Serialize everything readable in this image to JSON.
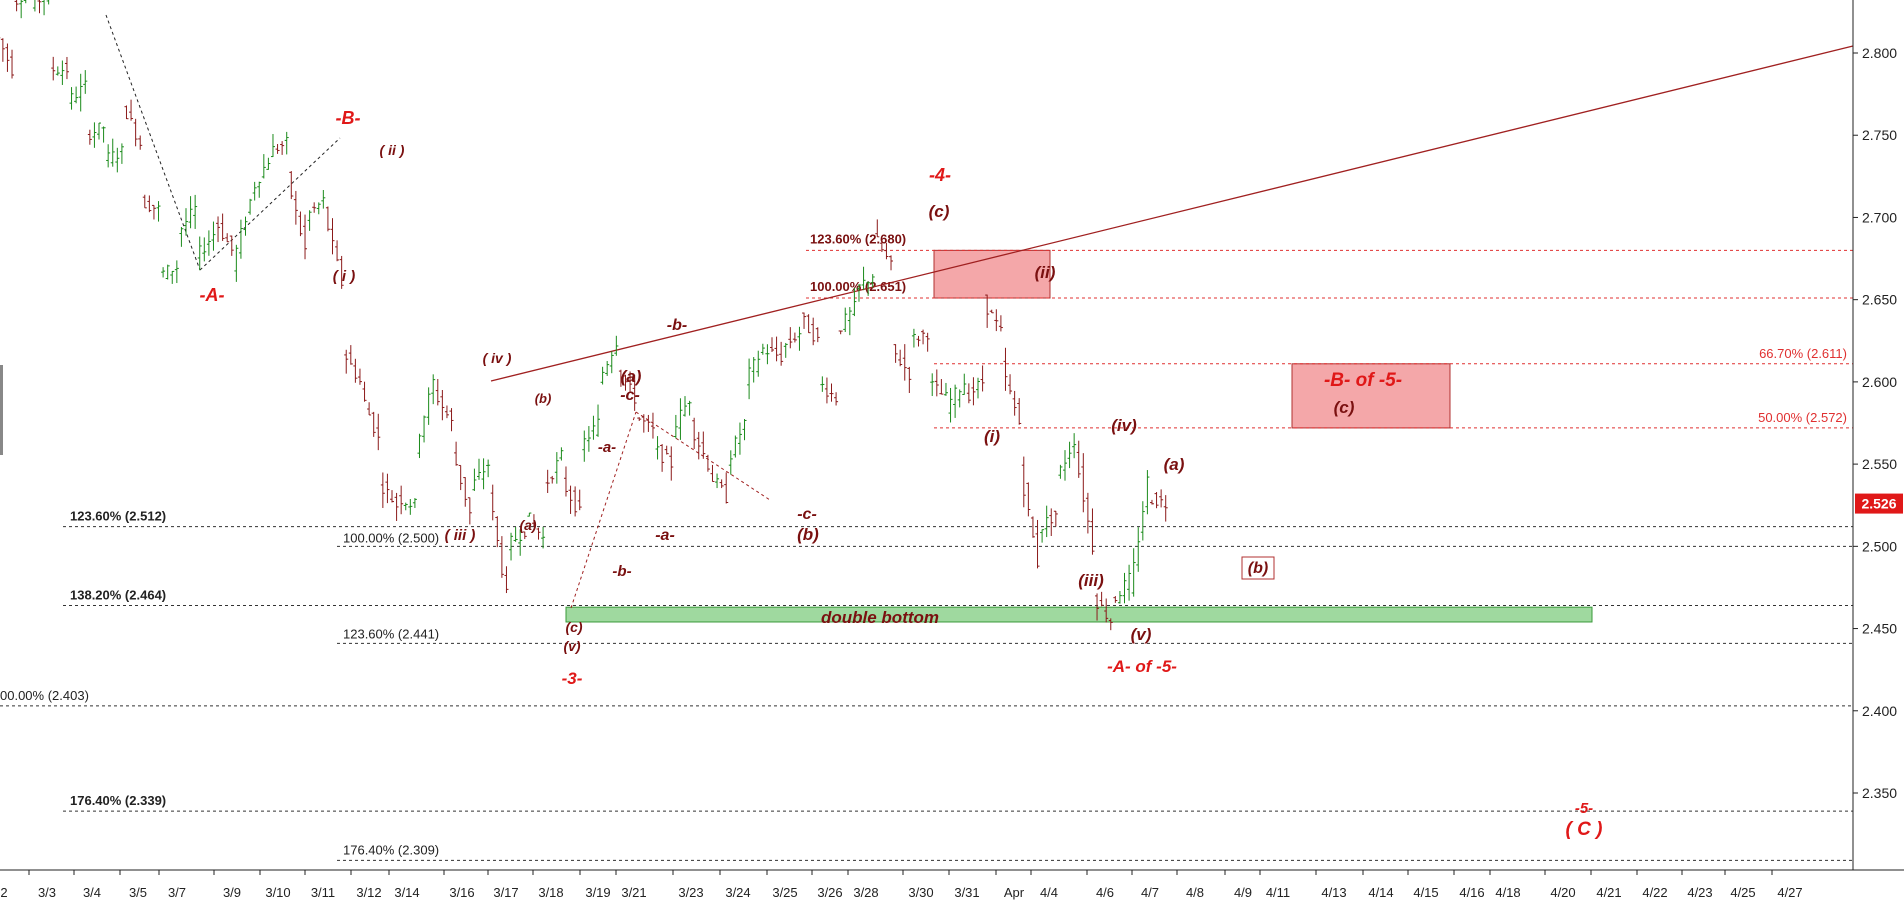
{
  "chart_data": {
    "type": "candlestick",
    "title": "",
    "xlabel": "",
    "ylabel": "",
    "ylim": [
      2.305,
      2.83
    ],
    "y_ticks": [
      2.35,
      2.4,
      2.45,
      2.5,
      2.55,
      2.6,
      2.65,
      2.7,
      2.75,
      2.8
    ],
    "y_tick_labels": [
      "2.350",
      "2.400",
      "2.450",
      "2.500",
      "2.550",
      "2.600",
      "2.650",
      "2.700",
      "2.750",
      "2.800"
    ],
    "x_tick_labels": [
      "2",
      "3/3",
      "3/4",
      "3/5",
      "3/7",
      "3/9",
      "3/10",
      "3/11",
      "3/12",
      "3/14",
      "3/16",
      "3/17",
      "3/18",
      "3/19",
      "3/21",
      "3/23",
      "3/24",
      "3/25",
      "3/26",
      "3/28",
      "3/30",
      "3/31",
      "Apr",
      "4/4",
      "4/6",
      "4/7",
      "4/8",
      "4/9",
      "4/11",
      "4/13",
      "4/14",
      "4/15",
      "4/16",
      "4/18",
      "4/20",
      "4/21",
      "4/22",
      "4/23",
      "4/25",
      "4/27"
    ],
    "last_price": "2.526",
    "colors": {
      "up": "#1a8a1a",
      "down": "#8b1a1a",
      "trend": "#a02020",
      "red_label": "#e01818",
      "dark_label": "#7a1010",
      "fib_red": "#e03030",
      "fib_black": "#333333",
      "zone_red": "#f4a7a9",
      "zone_green": "#9fd99f",
      "price_badge": "#e01818"
    },
    "waypoints": [
      [
        2.815,
        2.79
      ],
      [
        2.83,
        2.84
      ],
      [
        2.83,
        2.835
      ],
      [
        2.79,
        2.79
      ],
      [
        2.77,
        2.78
      ],
      [
        2.75,
        2.755
      ],
      [
        2.735,
        2.74
      ],
      [
        2.77,
        2.745
      ],
      [
        2.71,
        2.705
      ],
      [
        2.665,
        2.67
      ],
      [
        2.69,
        2.705
      ],
      [
        2.675,
        2.69
      ],
      [
        2.7,
        2.68
      ],
      [
        2.67,
        2.71
      ],
      [
        2.715,
        2.735
      ],
      [
        2.74,
        2.745
      ],
      [
        2.725,
        2.68
      ],
      [
        2.7,
        2.71
      ],
      [
        2.705,
        2.66
      ],
      [
        2.62,
        2.6
      ],
      [
        2.595,
        2.565
      ],
      [
        2.54,
        2.525
      ],
      [
        2.53,
        2.525
      ],
      [
        2.56,
        2.6
      ],
      [
        2.595,
        2.575
      ],
      [
        2.56,
        2.52
      ],
      [
        2.535,
        2.55
      ],
      [
        2.535,
        2.47
      ],
      [
        2.5,
        2.51
      ],
      [
        2.52,
        2.505
      ],
      [
        2.535,
        2.555
      ],
      [
        2.54,
        2.52
      ],
      [
        2.56,
        2.575
      ],
      [
        2.6,
        2.625
      ],
      [
        2.61,
        2.59
      ],
      [
        2.58,
        2.57
      ],
      [
        2.56,
        2.55
      ],
      [
        2.57,
        2.59
      ],
      [
        2.575,
        2.55
      ],
      [
        2.545,
        2.53
      ],
      [
        2.55,
        2.575
      ],
      [
        2.6,
        2.62
      ],
      [
        2.62,
        2.615
      ],
      [
        2.62,
        2.63
      ],
      [
        2.64,
        2.625
      ],
      [
        2.6,
        2.59
      ],
      [
        2.63,
        2.645
      ],
      [
        2.655,
        2.665
      ],
      [
        2.69,
        2.67
      ],
      [
        2.62,
        2.605
      ],
      [
        2.625,
        2.63
      ],
      [
        2.6,
        2.59
      ],
      [
        2.585,
        2.6
      ],
      [
        2.59,
        2.6
      ],
      [
        2.65,
        2.63
      ],
      [
        2.61,
        2.575
      ],
      [
        2.55,
        2.49
      ],
      [
        2.51,
        2.52
      ],
      [
        2.54,
        2.565
      ],
      [
        2.56,
        2.5
      ],
      [
        2.47,
        2.455
      ],
      [
        2.465,
        2.48
      ],
      [
        2.47,
        2.54
      ],
      [
        2.53,
        2.526
      ]
    ],
    "fib_levels": [
      {
        "label": "123.60% (2.680)",
        "value": 2.68,
        "style": "red"
      },
      {
        "label": "100.00% (2.651)",
        "value": 2.651,
        "style": "red"
      },
      {
        "label": "66.70% (2.611)",
        "value": 2.611,
        "style": "red"
      },
      {
        "label": "50.00% (2.572)",
        "value": 2.572,
        "style": "red"
      },
      {
        "label": "123.60% (2.512)",
        "value": 2.512,
        "style": "black"
      },
      {
        "label": "100.00% (2.500)",
        "value": 2.5,
        "style": "black"
      },
      {
        "label": "138.20% (2.464)",
        "value": 2.464,
        "style": "black"
      },
      {
        "label": "123.60% (2.441)",
        "value": 2.441,
        "style": "black"
      },
      {
        "label": "00.00% (2.403)",
        "value": 2.403,
        "style": "black"
      },
      {
        "label": "176.40% (2.339)",
        "value": 2.339,
        "style": "black"
      },
      {
        "label": "176.40% (2.309)",
        "value": 2.309,
        "style": "black"
      }
    ],
    "zones": [
      {
        "label": "double bottom",
        "y_range": [
          2.454,
          2.463
        ],
        "color": "green"
      },
      {
        "label": "",
        "y_range": [
          2.651,
          2.68
        ],
        "color": "red"
      },
      {
        "label": "-B- of -5-",
        "sublabel": "(c)",
        "y_range": [
          2.572,
          2.611
        ],
        "color": "red"
      }
    ],
    "annotations": {
      "red": [
        "-A-",
        "-B-",
        "-3-",
        "-4-",
        "-A- of -5-",
        "-5-",
        "( C )"
      ],
      "dark": [
        "( ii )",
        "( i )",
        "( iv )",
        "(b)",
        "( iii )",
        "(a)",
        "(c)",
        "(v)",
        "-a-",
        "-b-",
        "-c-",
        "(a)",
        "-b-",
        "-a-",
        "-c-",
        "(b)",
        "(c)",
        "(ii)",
        "(i)",
        "(iv)",
        "(iii)",
        "(v)",
        "(a)",
        "(b)"
      ]
    }
  }
}
